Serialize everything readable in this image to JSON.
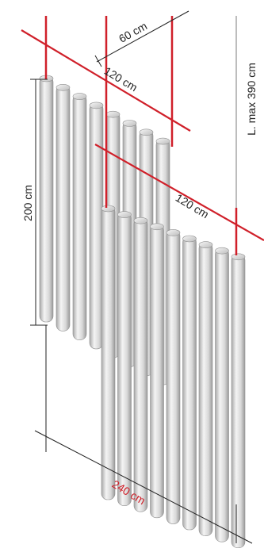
{
  "dimensions": {
    "depth_label": "60 cm",
    "module_width_upper_label": "120 cm",
    "module_width_lower_label": "120 cm",
    "cable_length_label": "L. max 390 cm",
    "panel_height_label": "200 cm",
    "total_width_label": "240 cm"
  },
  "colors": {
    "red_guide": "#d0202a",
    "dimension_line": "#222222",
    "total_width_text": "#d0202a",
    "cable": "#bdbdbd",
    "column_light": "#f2f2f2",
    "column_mid": "#d4d4d4",
    "column_dark": "#9c9c9c"
  }
}
